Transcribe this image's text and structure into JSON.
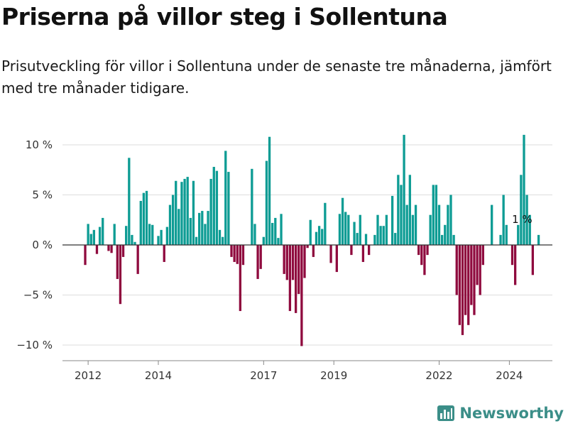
{
  "header": {
    "title": "Priserna på villor steg i Sollentuna",
    "subtitle": "Prisutveckling för villor i Sollentuna under de senaste tre månaderna, jämfört med tre månader tidigare."
  },
  "brand": {
    "name": "Newsworthy",
    "color": "#3b8e88"
  },
  "colors": {
    "positive": "#0d9c94",
    "negative": "#8f0a3e",
    "zero_line": "#333333",
    "grid": "#dddddd"
  },
  "chart_data": {
    "type": "bar",
    "x_start": "2011-12",
    "frequency": "monthly",
    "yticks": [
      10,
      5,
      0,
      -5,
      -10
    ],
    "ytick_labels": [
      "10 %",
      "5 %",
      "0 %",
      "−5 %",
      "−10 %"
    ],
    "ylim": [
      -11.5,
      12
    ],
    "xticks": [
      {
        "label": "2012",
        "index": 1
      },
      {
        "label": "2014",
        "index": 25
      },
      {
        "label": "2017",
        "index": 61
      },
      {
        "label": "2019",
        "index": 85
      },
      {
        "label": "2022",
        "index": 121
      },
      {
        "label": "2024",
        "index": 145
      }
    ],
    "annotation": {
      "label": "1 %",
      "index": 151
    },
    "values": [
      -2.0,
      2.1,
      1.1,
      1.5,
      -0.9,
      1.8,
      2.7,
      0,
      -0.6,
      -0.8,
      2.1,
      -3.4,
      -5.9,
      -1.2,
      1.9,
      8.7,
      1.0,
      0.3,
      -2.9,
      4.4,
      5.2,
      5.4,
      2.1,
      2.0,
      0,
      0.9,
      1.5,
      -1.7,
      1.8,
      4.0,
      5.0,
      6.4,
      3.6,
      6.3,
      6.6,
      6.8,
      2.7,
      6.4,
      0.8,
      3.2,
      3.4,
      2.1,
      3.4,
      6.6,
      7.8,
      7.4,
      1.5,
      0.8,
      9.4,
      7.3,
      -1.2,
      -1.7,
      -1.9,
      -6.6,
      -2.0,
      0,
      0,
      7.6,
      2.1,
      -3.4,
      -2.4,
      0.8,
      8.4,
      10.8,
      2.2,
      2.7,
      0.7,
      3.1,
      -2.9,
      -3.5,
      -6.6,
      -3.5,
      -6.8,
      -4.9,
      -10.1,
      -3.3,
      -0.3,
      2.5,
      -1.2,
      1.3,
      1.9,
      1.6,
      4.2,
      0,
      -1.8,
      0,
      -2.7,
      3.1,
      4.7,
      3.3,
      3.0,
      -1.0,
      2.3,
      1.2,
      3.0,
      -1.7,
      1.1,
      -1.0,
      0,
      1.0,
      3.0,
      1.9,
      1.9,
      3.0,
      0,
      4.9,
      1.2,
      7.0,
      6.0,
      11.0,
      4.0,
      7.0,
      3.0,
      4.0,
      -1.0,
      -2.0,
      -3.0,
      -1.0,
      3.0,
      6.0,
      6.0,
      4.0,
      1.0,
      2.0,
      4.0,
      5.0,
      1.0,
      -5.0,
      -8.0,
      -9.0,
      -7.0,
      -8.0,
      -6.0,
      -7.0,
      -4.0,
      -5.0,
      -2.0,
      0,
      0,
      4.0,
      0,
      0,
      1.0,
      5.0,
      2.0,
      0,
      -2.0,
      -4.0,
      2.0,
      7.0,
      11.0,
      5.0,
      3.0,
      -3.0,
      0,
      1.0
    ]
  }
}
